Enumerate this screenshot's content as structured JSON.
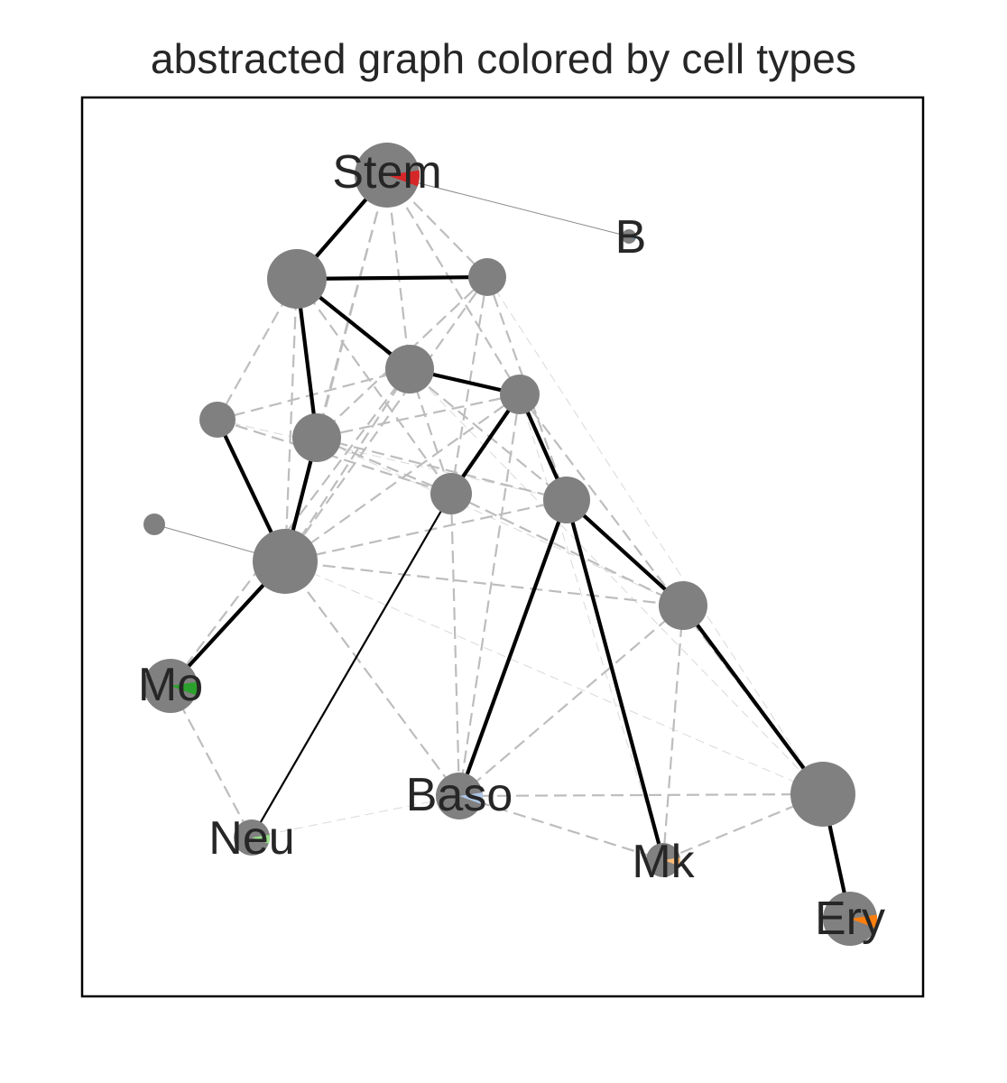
{
  "title": "abstracted graph colored by cell types",
  "colors": {
    "node": "#808080",
    "strong_edge": "#000000",
    "dashed_edge": "#bdbdbd",
    "thin_edge": "#9a9a9a",
    "frame": "#000000"
  },
  "nodes": [
    {
      "id": "stem",
      "label": "Stem",
      "accent": "#d62728"
    },
    {
      "id": "b",
      "label": "B",
      "accent": "#1f77b4"
    },
    {
      "id": "n2",
      "label": ""
    },
    {
      "id": "n3",
      "label": ""
    },
    {
      "id": "n4",
      "label": ""
    },
    {
      "id": "n5",
      "label": ""
    },
    {
      "id": "n6",
      "label": ""
    },
    {
      "id": "n7",
      "label": ""
    },
    {
      "id": "n8",
      "label": ""
    },
    {
      "id": "n9",
      "label": ""
    },
    {
      "id": "n10",
      "label": ""
    },
    {
      "id": "n11",
      "label": ""
    },
    {
      "id": "n12",
      "label": ""
    },
    {
      "id": "mo",
      "label": "Mo",
      "accent": "#2ca02c"
    },
    {
      "id": "neu",
      "label": "Neu",
      "accent": "#98df8a"
    },
    {
      "id": "baso",
      "label": "Baso",
      "accent": "#aec7e8"
    },
    {
      "id": "mk",
      "label": "Mk",
      "accent": "#ffbb78"
    },
    {
      "id": "n17",
      "label": ""
    },
    {
      "id": "ery",
      "label": "Ery",
      "accent": "#ff7f0e"
    }
  ],
  "edges": [
    {
      "from": "stem",
      "to": "n2",
      "style": "solid"
    },
    {
      "from": "n2",
      "to": "n3",
      "style": "solid"
    },
    {
      "from": "n2",
      "to": "n4",
      "style": "solid"
    },
    {
      "from": "n2",
      "to": "n7",
      "style": "solid"
    },
    {
      "from": "n4",
      "to": "n5",
      "style": "solid"
    },
    {
      "from": "n5",
      "to": "n8",
      "style": "solid"
    },
    {
      "from": "n5",
      "to": "n9",
      "style": "solid"
    },
    {
      "from": "n9",
      "to": "n12",
      "style": "solid"
    },
    {
      "from": "n9",
      "to": "baso",
      "style": "solid"
    },
    {
      "from": "n9",
      "to": "mk",
      "style": "solid"
    },
    {
      "from": "n12",
      "to": "n17",
      "style": "solid"
    },
    {
      "from": "n17",
      "to": "ery",
      "style": "solid"
    },
    {
      "from": "n6",
      "to": "n11",
      "style": "solid"
    },
    {
      "from": "n7",
      "to": "n11",
      "style": "solid"
    },
    {
      "from": "n11",
      "to": "mo",
      "style": "solid"
    },
    {
      "from": "n8",
      "to": "neu",
      "style": "solid_thin"
    },
    {
      "from": "stem",
      "to": "b",
      "style": "hair"
    },
    {
      "from": "n10",
      "to": "n11",
      "style": "hair"
    },
    {
      "from": "stem",
      "to": "n4",
      "style": "dashed"
    },
    {
      "from": "stem",
      "to": "n3",
      "style": "dashed"
    },
    {
      "from": "stem",
      "to": "n5",
      "style": "dashed"
    },
    {
      "from": "stem",
      "to": "n7",
      "style": "dashed"
    },
    {
      "from": "stem",
      "to": "n11",
      "style": "dashed"
    },
    {
      "from": "n3",
      "to": "n11",
      "style": "dashed"
    },
    {
      "from": "n3",
      "to": "n7",
      "style": "dashed"
    },
    {
      "from": "n3",
      "to": "n8",
      "style": "dashed"
    },
    {
      "from": "n3",
      "to": "n9",
      "style": "dashed"
    },
    {
      "from": "n4",
      "to": "n11",
      "style": "dashed"
    },
    {
      "from": "n4",
      "to": "n6",
      "style": "dashed"
    },
    {
      "from": "n4",
      "to": "n8",
      "style": "dashed"
    },
    {
      "from": "n4",
      "to": "mo",
      "style": "dashed"
    },
    {
      "from": "n2",
      "to": "n6",
      "style": "dashed"
    },
    {
      "from": "n2",
      "to": "n11",
      "style": "dashed"
    },
    {
      "from": "n2",
      "to": "n8",
      "style": "dashed"
    },
    {
      "from": "n2",
      "to": "n9",
      "style": "dashed"
    },
    {
      "from": "n5",
      "to": "n11",
      "style": "dashed"
    },
    {
      "from": "n5",
      "to": "n7",
      "style": "dashed"
    },
    {
      "from": "n5",
      "to": "baso",
      "style": "dashed"
    },
    {
      "from": "n5",
      "to": "n17",
      "style": "dashed"
    },
    {
      "from": "n7",
      "to": "n9",
      "style": "dashed"
    },
    {
      "from": "n7",
      "to": "n8",
      "style": "dashed"
    },
    {
      "from": "n6",
      "to": "n8",
      "style": "dashed"
    },
    {
      "from": "n8",
      "to": "n12",
      "style": "dashed"
    },
    {
      "from": "n8",
      "to": "baso",
      "style": "dashed"
    },
    {
      "from": "n9",
      "to": "n11",
      "style": "dashed"
    },
    {
      "from": "n12",
      "to": "mk",
      "style": "dashed"
    },
    {
      "from": "n12",
      "to": "baso",
      "style": "dashed"
    },
    {
      "from": "n11",
      "to": "n12",
      "style": "dashed"
    },
    {
      "from": "n11",
      "to": "baso",
      "style": "dashed"
    },
    {
      "from": "mo",
      "to": "neu",
      "style": "dashed"
    },
    {
      "from": "baso",
      "to": "n17",
      "style": "dashed"
    },
    {
      "from": "baso",
      "to": "mk",
      "style": "dashed"
    },
    {
      "from": "mk",
      "to": "n17",
      "style": "dashed"
    },
    {
      "from": "n3",
      "to": "n17",
      "style": "faint"
    },
    {
      "from": "n4",
      "to": "n17",
      "style": "faint"
    },
    {
      "from": "neu",
      "to": "baso",
      "style": "faint"
    },
    {
      "from": "n6",
      "to": "n9",
      "style": "faint"
    },
    {
      "from": "n7",
      "to": "n12",
      "style": "faint"
    },
    {
      "from": "n11",
      "to": "n17",
      "style": "faint"
    },
    {
      "from": "n5",
      "to": "mk",
      "style": "faint"
    }
  ]
}
